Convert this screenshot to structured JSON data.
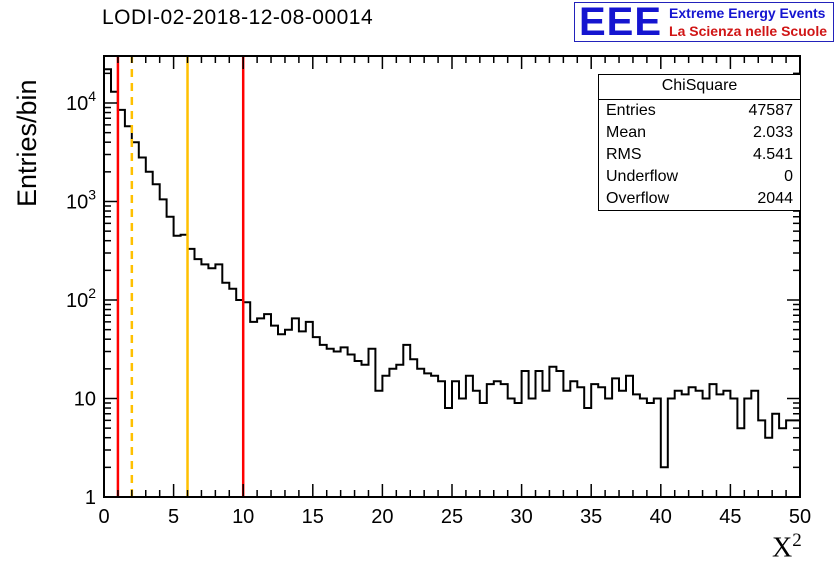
{
  "title": "LODI-02-2018-12-08-00014",
  "logo": {
    "eee": "EEE",
    "line1": "Extreme Energy Events",
    "line2": "La Scienza nelle Scuole",
    "blue": "#1515d0",
    "red": "#d01515"
  },
  "stats": {
    "title": "ChiSquare",
    "rows": [
      {
        "label": "Entries",
        "value": "47587"
      },
      {
        "label": "Mean",
        "value": "2.033"
      },
      {
        "label": "RMS",
        "value": "4.541"
      },
      {
        "label": "Underflow",
        "value": "0"
      },
      {
        "label": "Overflow",
        "value": "2044"
      }
    ]
  },
  "chart_data": {
    "type": "bar",
    "subtype": "histogram-step",
    "title": "LODI-02-2018-12-08-00014",
    "xlabel": "X^2",
    "xlabel_base": "X",
    "xlabel_sup": "2",
    "ylabel": "Entries/bin",
    "x_range": [
      0,
      50
    ],
    "y_range": [
      1,
      30000
    ],
    "y_scale": "log",
    "grid": false,
    "line_color": "#000000",
    "bin_start": 0,
    "bin_width": 0.5,
    "x_ticks": [
      0,
      5,
      10,
      15,
      20,
      25,
      30,
      35,
      40,
      45,
      50
    ],
    "x_minor_step": 1,
    "y_ticks": [
      1,
      10,
      100,
      1000,
      10000
    ],
    "counts": [
      22000,
      13000,
      8500,
      5800,
      4000,
      2800,
      2000,
      1500,
      1050,
      700,
      450,
      460,
      330,
      260,
      230,
      210,
      230,
      150,
      130,
      100,
      95,
      60,
      65,
      72,
      55,
      45,
      50,
      65,
      48,
      60,
      42,
      35,
      32,
      30,
      33,
      28,
      24,
      22,
      32,
      12,
      17,
      20,
      22,
      35,
      25,
      20,
      18,
      17,
      15,
      8,
      15,
      10,
      17,
      12,
      9,
      14,
      15,
      14,
      10,
      9,
      19,
      10,
      19,
      12,
      21,
      19,
      12,
      15,
      13,
      8,
      14,
      13,
      10,
      16,
      12,
      17,
      11,
      10,
      9,
      10,
      2,
      10,
      12,
      11,
      13,
      12,
      10,
      14,
      11,
      12,
      10,
      5,
      10,
      12,
      6,
      4,
      7,
      5,
      6,
      6
    ],
    "vlines": [
      {
        "x": 1,
        "color": "#ff0000",
        "style": "solid"
      },
      {
        "x": 2,
        "color": "#ffc000",
        "style": "dashed"
      },
      {
        "x": 6,
        "color": "#ffc000",
        "style": "solid"
      },
      {
        "x": 10,
        "color": "#ff0000",
        "style": "solid"
      }
    ]
  }
}
